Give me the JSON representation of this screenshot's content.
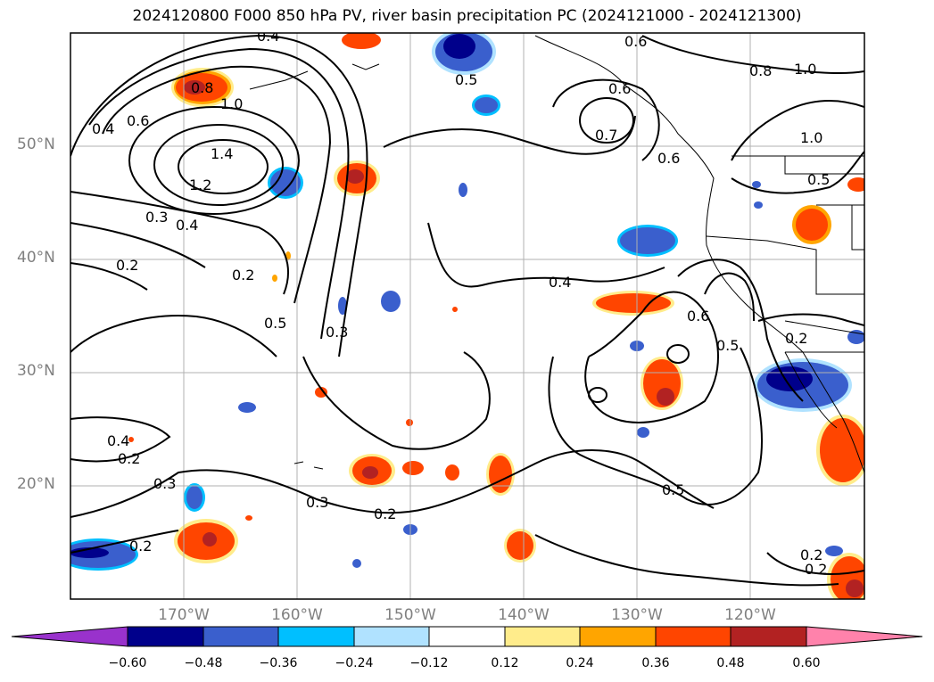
{
  "title": "2024120800 F000 850 hPa PV, river basin precipitation PC (2024121000 - 2024121300)",
  "lat_labels": [
    "50°N",
    "40°N",
    "30°N",
    "20°N"
  ],
  "lon_labels": [
    "170°W",
    "160°W",
    "150°W",
    "140°W",
    "130°W",
    "120°W"
  ],
  "colorbar": {
    "ticks": [
      "−0.60",
      "−0.48",
      "−0.36",
      "−0.24",
      "−0.12",
      "0.12",
      "0.24",
      "0.36",
      "0.48",
      "0.60"
    ],
    "colors": [
      "#9932cc",
      "#00008b",
      "#3a5fcd",
      "#00bfff",
      "#b0e2ff",
      "#ffffff",
      "#ffec8b",
      "#ffa500",
      "#ff4500",
      "#b22222",
      "#ff82ab"
    ]
  },
  "contour_labels": [
    "1.4",
    "1.2",
    "1.0",
    "0.8",
    "0.6",
    "0.4",
    "0.3",
    "0.2",
    "0.2",
    "0.5",
    "0.3",
    "0.4",
    "0.6",
    "0.5",
    "0.6",
    "0.8",
    "1.0",
    "0.7",
    "0.6",
    "0.5",
    "0.4",
    "0.3",
    "0.2",
    "0.2",
    "0.3",
    "0.4",
    "0.2",
    "0.2",
    "0.5",
    "0.2",
    "0.2",
    "1.0",
    "0.6",
    "0.5",
    "0.4"
  ]
}
